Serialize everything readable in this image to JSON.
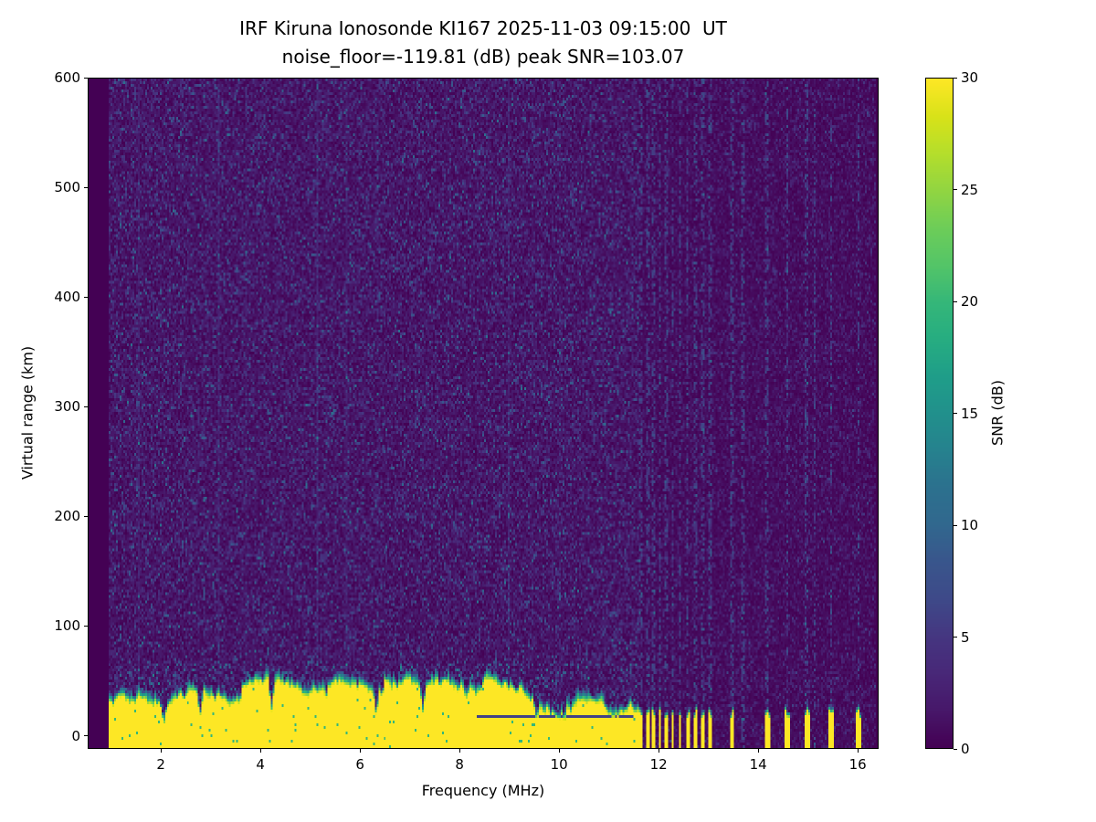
{
  "chart_data": {
    "type": "heatmap",
    "title": "IRF Kiruna Ionosonde KI167 2025-11-03 09:15:00  UT",
    "subtitle": "noise_floor=-119.81 (dB) peak SNR=103.07",
    "station": "IRF Kiruna Ionosonde KI167",
    "timestamp_ut": "2025-11-03 09:15:00",
    "noise_floor_db": -119.81,
    "peak_snr_db": 103.07,
    "xlabel": "Frequency (MHz)",
    "ylabel": "Virtual range (km)",
    "xlim": [
      0.53,
      16.42
    ],
    "ylim": [
      -12,
      600
    ],
    "xticks": [
      2,
      4,
      6,
      8,
      10,
      12,
      14,
      16
    ],
    "yticks": [
      0,
      100,
      200,
      300,
      400,
      500,
      600
    ],
    "colormap": "viridis",
    "colorbar": {
      "label": "SNR (dB)",
      "min": 0,
      "max": 30,
      "ticks": [
        0,
        5,
        10,
        15,
        20,
        25,
        30
      ]
    },
    "seed": 167,
    "features": {
      "data_freq_range_mhz": [
        0.95,
        16.38
      ],
      "continuous_sweep_max_mhz": 11.6,
      "ground_clutter_band": {
        "top_km_mean": 28,
        "top_km_min": 14,
        "top_km_max": 50,
        "snr_db": 30
      },
      "band_notch_freqs_mhz": [
        2.05,
        2.78,
        4.22,
        6.32,
        7.26,
        9.55
      ],
      "weak_stripe_freqs_mhz": [
        6.32,
        7.26
      ],
      "bar_freqs_mhz": [
        11.66,
        11.79,
        11.91,
        12.03,
        12.16,
        12.29,
        12.44,
        12.59,
        12.74,
        12.9,
        13.05,
        13.49,
        14.19,
        14.6,
        15.0,
        15.49,
        16.04
      ],
      "stripe_freqs_mhz": [
        11.66,
        11.79,
        11.91,
        12.03,
        12.16,
        12.29,
        12.44,
        12.59,
        12.74,
        12.9,
        13.05,
        13.49,
        13.7,
        14.19,
        14.6,
        15.0,
        15.15,
        15.49,
        16.04
      ],
      "background_noise_db_range": [
        0,
        12
      ]
    }
  }
}
